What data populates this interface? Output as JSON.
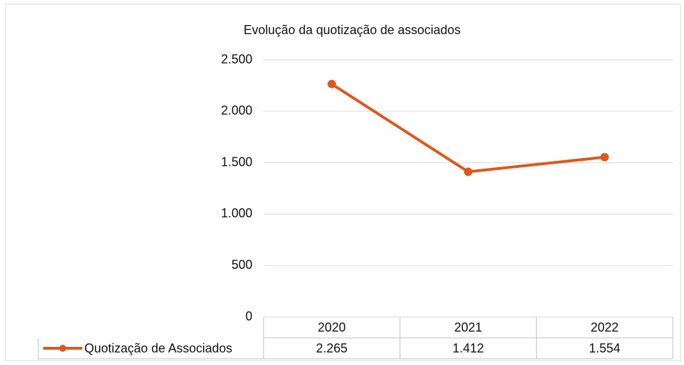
{
  "chart_data": {
    "type": "line",
    "title": "Evolução da quotização de associados",
    "categories": [
      "2020",
      "2021",
      "2022"
    ],
    "series": [
      {
        "name": "Quotização de Associados",
        "color": "#e0561c",
        "values": [
          2265,
          1412,
          1554
        ],
        "value_labels": [
          "2.265",
          "1.412",
          "1.554"
        ]
      }
    ],
    "ylim": [
      0,
      2500
    ],
    "yticks": [
      0,
      500,
      {
        "value": 1000,
        "label": "1.000"
      },
      {
        "value": 1500,
        "label": "1.500"
      },
      {
        "value": 2000,
        "label": "2.000"
      },
      {
        "value": 2500,
        "label": "2.500"
      }
    ],
    "grid": true
  }
}
